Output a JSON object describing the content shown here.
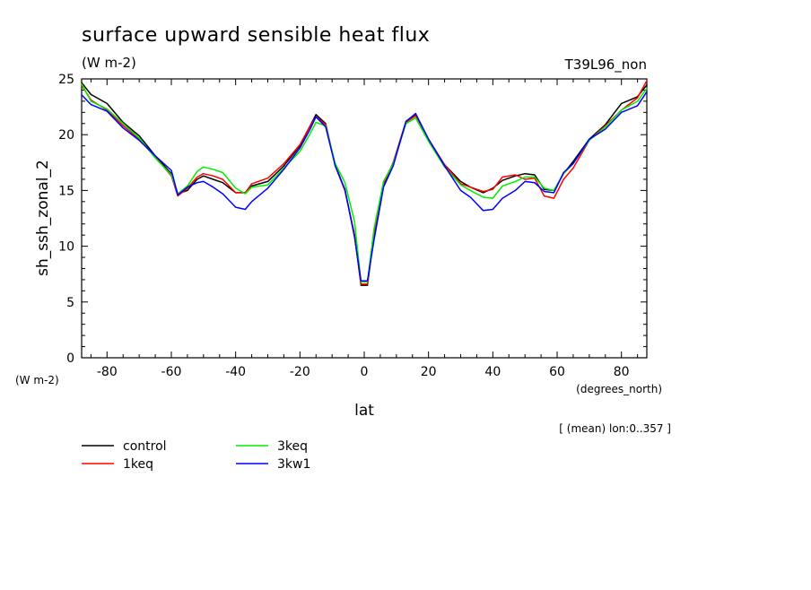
{
  "chart_data": {
    "type": "line",
    "title": "surface upward sensible heat flux",
    "subtitle": "(W m-2)",
    "experiment": "T39L96_non",
    "xlabel": "lat",
    "ylabel": "sh_ssh_zonal_2",
    "y_units": "(W m-2)",
    "x_units": "(degrees_north)",
    "note": "[ (mean) lon:0..357 ]",
    "xlim": [
      -87.9,
      87.9
    ],
    "ylim": [
      0,
      25
    ],
    "xticks": [
      -80,
      -60,
      -40,
      -20,
      0,
      20,
      40,
      60,
      80
    ],
    "xtick_labels": [
      "-80",
      "-60",
      "-40",
      "-20",
      "0",
      "20",
      "40",
      "60",
      "80"
    ],
    "yticks": [
      0,
      5,
      10,
      15,
      20,
      25
    ],
    "ytick_labels": [
      "0",
      "5",
      "10",
      "15",
      "20",
      "25"
    ],
    "grid": false,
    "legend_position": "bottom-left",
    "x": [
      -88,
      -85,
      -80,
      -75,
      -70,
      -65,
      -60,
      -58,
      -55,
      -52,
      -50,
      -47,
      -44,
      -40,
      -37,
      -35,
      -30,
      -25,
      -20,
      -17,
      -15,
      -12,
      -9,
      -6,
      -3,
      -1,
      1,
      3,
      6,
      9,
      13,
      16,
      20,
      25,
      30,
      33,
      37,
      40,
      43,
      47,
      50,
      53,
      56,
      59,
      62,
      65,
      70,
      75,
      80,
      85,
      88
    ],
    "series": [
      {
        "name": "control",
        "color": "#000000",
        "values": [
          24.7,
          23.6,
          22.8,
          21.1,
          19.9,
          18.1,
          16.5,
          14.7,
          15.0,
          16.0,
          16.3,
          16.0,
          15.7,
          14.8,
          14.8,
          15.4,
          15.8,
          17.2,
          19.0,
          20.7,
          21.8,
          21.0,
          17.2,
          15.0,
          11.0,
          6.5,
          6.5,
          11.0,
          15.5,
          17.5,
          21.2,
          21.8,
          19.5,
          17.3,
          15.8,
          15.3,
          14.8,
          15.2,
          15.9,
          16.3,
          16.5,
          16.4,
          15.1,
          15.0,
          16.5,
          17.6,
          19.6,
          20.9,
          22.8,
          23.4,
          24.5
        ]
      },
      {
        "name": "1keq",
        "color": "#ff0000",
        "values": [
          24.5,
          23.1,
          22.2,
          20.8,
          19.6,
          18.0,
          16.3,
          14.5,
          15.2,
          16.2,
          16.5,
          16.3,
          16.0,
          14.8,
          14.8,
          15.6,
          16.1,
          17.4,
          19.1,
          20.7,
          21.6,
          20.9,
          17.3,
          15.0,
          11.0,
          6.6,
          6.6,
          11.0,
          15.6,
          17.5,
          21.1,
          21.7,
          19.6,
          17.3,
          15.6,
          15.3,
          14.9,
          15.1,
          16.2,
          16.4,
          16.0,
          16.1,
          14.5,
          14.3,
          16.0,
          17.0,
          19.5,
          20.8,
          22.2,
          23.3,
          24.9
        ]
      },
      {
        "name": "3keq",
        "color": "#00ee00",
        "values": [
          24.6,
          23.0,
          22.3,
          21.0,
          19.7,
          17.9,
          16.4,
          14.7,
          15.4,
          16.7,
          17.1,
          16.9,
          16.6,
          15.2,
          14.7,
          15.3,
          15.5,
          17.0,
          18.5,
          20.0,
          21.1,
          20.8,
          17.4,
          15.7,
          12.2,
          6.8,
          6.8,
          11.5,
          15.8,
          17.4,
          21.0,
          21.5,
          19.4,
          17.1,
          15.5,
          15.0,
          14.4,
          14.3,
          15.4,
          15.8,
          16.2,
          16.2,
          15.2,
          15.0,
          16.5,
          17.4,
          19.5,
          20.7,
          22.2,
          23.0,
          24.2
        ]
      },
      {
        "name": "3kw1",
        "color": "#0000ff",
        "values": [
          23.6,
          22.7,
          22.1,
          20.6,
          19.5,
          18.1,
          16.8,
          14.6,
          15.3,
          15.7,
          15.8,
          15.3,
          14.7,
          13.5,
          13.3,
          14.0,
          15.2,
          16.9,
          18.8,
          20.4,
          21.6,
          20.7,
          17.2,
          15.1,
          10.8,
          6.9,
          6.9,
          10.5,
          15.3,
          17.2,
          21.2,
          21.9,
          19.6,
          17.2,
          15.0,
          14.4,
          13.2,
          13.3,
          14.3,
          15.0,
          15.8,
          15.7,
          14.9,
          14.8,
          16.6,
          17.4,
          19.6,
          20.5,
          22.0,
          22.6,
          23.9
        ]
      }
    ]
  }
}
